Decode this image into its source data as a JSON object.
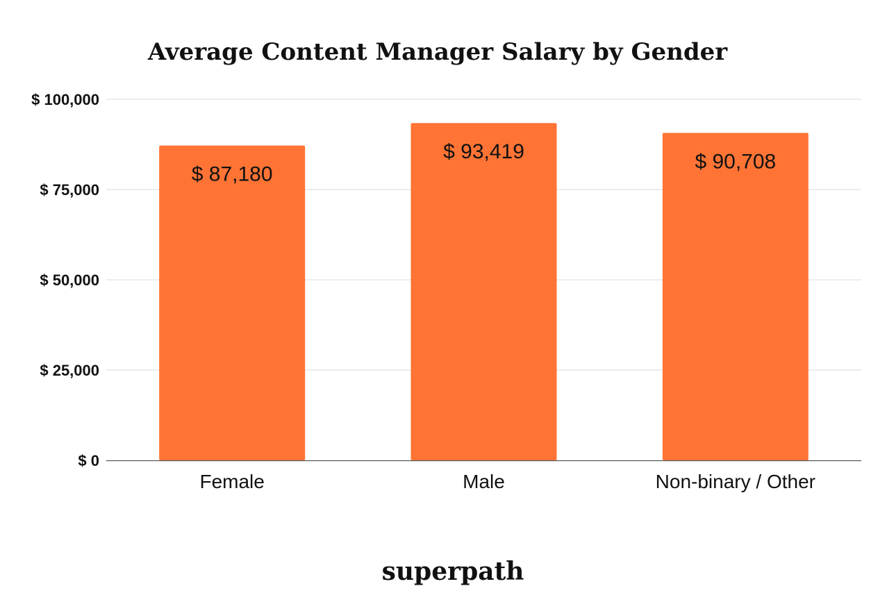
{
  "chart_data": {
    "type": "bar",
    "title": "Average Content Manager Salary by Gender",
    "categories": [
      "Female",
      "Male",
      "Non-binary / Other"
    ],
    "values": [
      87180,
      93419,
      90708
    ],
    "data_labels": [
      "$ 87,180",
      "$ 93,419",
      "$ 90,708"
    ],
    "ylim": [
      0,
      100000
    ],
    "yticks": [
      0,
      25000,
      50000,
      75000,
      100000
    ],
    "ytick_labels": [
      "$ 0",
      "$ 25,000",
      "$ 50,000",
      "$ 75,000",
      "$ 100,000"
    ],
    "xlabel": "",
    "ylabel": "",
    "grid": true,
    "legend": "none",
    "bar_color": "#ff7435"
  },
  "brand": "superpath"
}
